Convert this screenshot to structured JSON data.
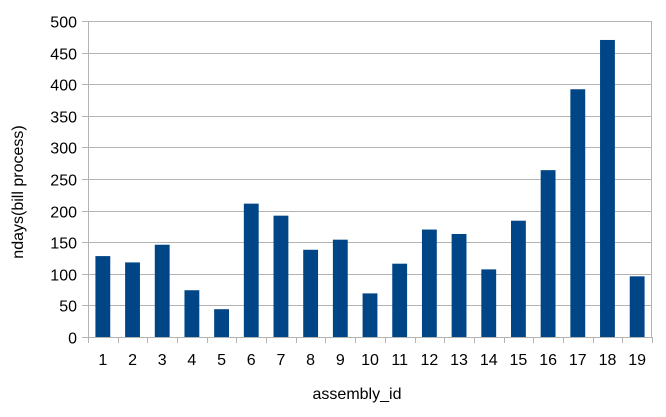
{
  "chart_data": {
    "type": "bar",
    "title": "",
    "xlabel": "assembly_id",
    "ylabel": "ndays(bill process)",
    "categories": [
      "1",
      "2",
      "3",
      "4",
      "5",
      "6",
      "7",
      "8",
      "9",
      "10",
      "11",
      "12",
      "13",
      "14",
      "15",
      "16",
      "17",
      "18",
      "19"
    ],
    "series": [
      {
        "values": [
          128,
          118,
          146,
          74,
          44,
          211,
          192,
          138,
          154,
          69,
          116,
          170,
          163,
          107,
          184,
          264,
          392,
          470,
          96
        ]
      }
    ],
    "ylim": [
      0,
      500
    ],
    "yticks": [
      0,
      50,
      100,
      150,
      200,
      250,
      300,
      350,
      400,
      450,
      500
    ],
    "grid": "horizontal",
    "legend": "none",
    "colors": {
      "bar": "#004586",
      "grid": "#b3b3b3",
      "axis": "#b3b3b3"
    }
  }
}
